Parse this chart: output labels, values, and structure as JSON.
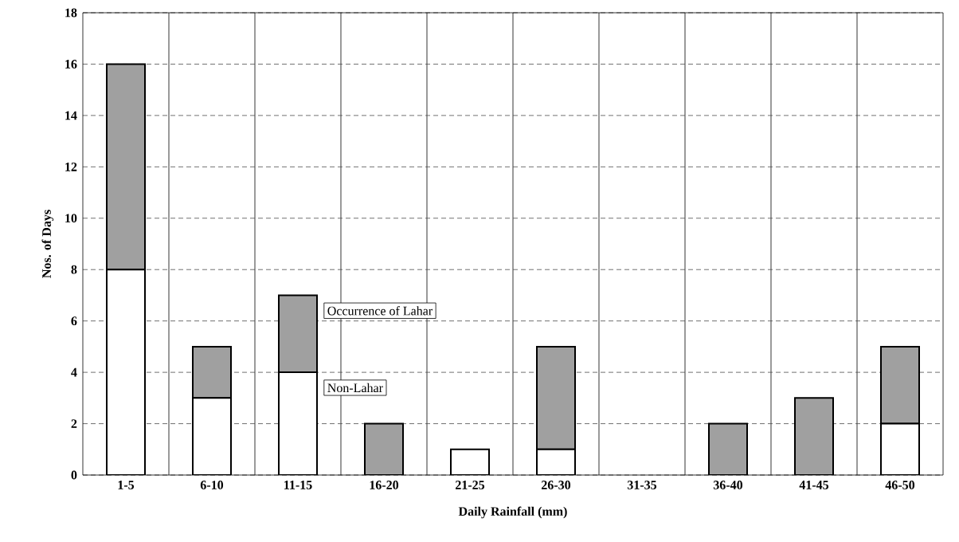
{
  "chart_data": {
    "type": "bar",
    "stacked": true,
    "categories": [
      "1-5",
      "6-10",
      "11-15",
      "16-20",
      "21-25",
      "26-30",
      "31-35",
      "36-40",
      "41-45",
      "46-50"
    ],
    "series": [
      {
        "name": "Non-Lahar",
        "color": "#ffffff",
        "values": [
          8,
          3,
          4,
          0,
          1,
          1,
          0,
          0,
          0,
          2
        ]
      },
      {
        "name": "Occurrence of Lahar",
        "color": "#a0a0a0",
        "values": [
          8,
          2,
          3,
          2,
          0,
          4,
          0,
          2,
          3,
          3
        ]
      }
    ],
    "xlabel": "Daily Rainfall (mm)",
    "ylabel": "Nos. of Days",
    "ylim": [
      0,
      18
    ],
    "yticks": [
      0,
      2,
      4,
      6,
      8,
      10,
      12,
      14,
      16,
      18
    ],
    "grid": true
  }
}
